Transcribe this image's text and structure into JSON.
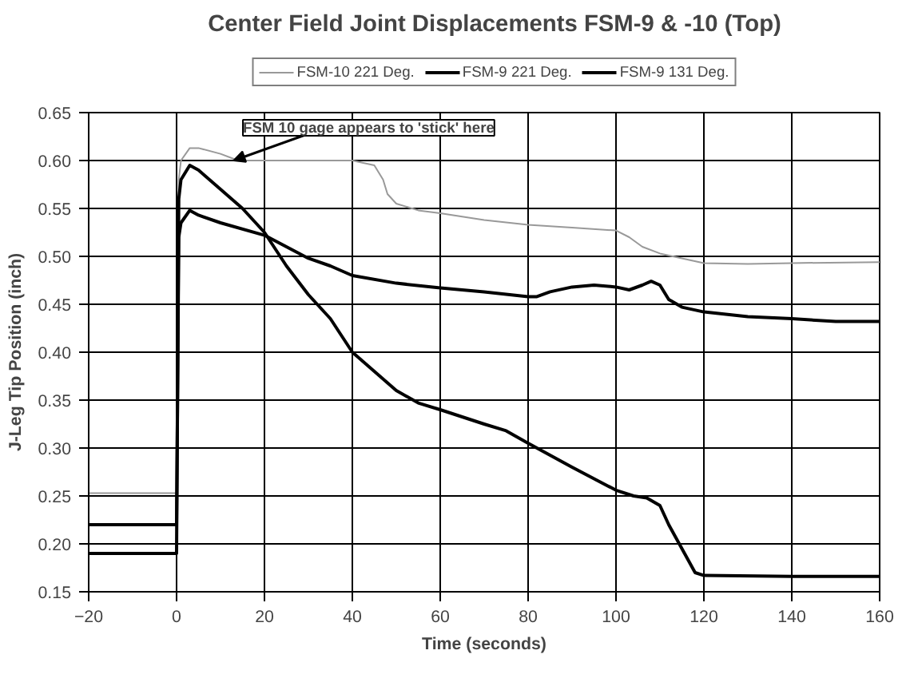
{
  "chart_data": {
    "type": "line",
    "title": "Center Field Joint Displacements FSM-9 & -10 (Top)",
    "xlabel": "Time (seconds)",
    "ylabel": "J-Leg Tip Position (inch)",
    "xlim": [
      -20,
      160
    ],
    "xticks": [
      -20,
      0,
      20,
      40,
      60,
      80,
      100,
      120,
      140,
      160
    ],
    "ylim": [
      0.15,
      0.65
    ],
    "yticks": [
      {
        "value": 0.15,
        "label": "0.15"
      },
      {
        "value": 0.2,
        "label": "0.20"
      },
      {
        "value": 0.25,
        "label": "0.25"
      },
      {
        "value": 0.3,
        "label": "0.30"
      },
      {
        "value": 0.35,
        "label": "0.35"
      },
      {
        "value": 0.4,
        "label": "0.40"
      },
      {
        "value": 0.45,
        "label": "0.45"
      },
      {
        "value": 0.5,
        "label": "0.50"
      },
      {
        "value": 0.55,
        "label": "0.55"
      },
      {
        "value": 0.6,
        "label": "0.60"
      },
      {
        "value": 0.65,
        "label": "0.65"
      }
    ],
    "grid": true,
    "legend": "top",
    "marker": "none",
    "line_style": "solid",
    "annotations": [
      {
        "text": "FSM 10 gage appears to 'stick' here",
        "x": 13,
        "y": 0.6
      }
    ],
    "series": [
      {
        "name": "FSM-10 221 Deg.",
        "color": "#999999",
        "x": [
          -20,
          0,
          0.5,
          1,
          3,
          5,
          10,
          14,
          20,
          30,
          40,
          45,
          47,
          48,
          50,
          55,
          60,
          70,
          80,
          90,
          100,
          103,
          106,
          110,
          115,
          120,
          130,
          140,
          160
        ],
        "values": [
          0.253,
          0.253,
          0.58,
          0.6,
          0.613,
          0.613,
          0.607,
          0.6,
          0.6,
          0.6,
          0.6,
          0.595,
          0.58,
          0.565,
          0.555,
          0.548,
          0.545,
          0.538,
          0.533,
          0.53,
          0.527,
          0.52,
          0.51,
          0.503,
          0.498,
          0.493,
          0.492,
          0.493,
          0.494
        ]
      },
      {
        "name": "FSM-9 221 Deg.",
        "color": "#000000",
        "x": [
          -20,
          0,
          0.5,
          1,
          3,
          5,
          10,
          20,
          25,
          30,
          35,
          40,
          50,
          60,
          70,
          80,
          82,
          85,
          90,
          95,
          100,
          103,
          106,
          108,
          110,
          112,
          115,
          120,
          130,
          140,
          150,
          160
        ],
        "values": [
          0.22,
          0.22,
          0.52,
          0.535,
          0.548,
          0.543,
          0.535,
          0.522,
          0.51,
          0.498,
          0.49,
          0.48,
          0.472,
          0.467,
          0.463,
          0.458,
          0.458,
          0.463,
          0.468,
          0.47,
          0.468,
          0.465,
          0.47,
          0.474,
          0.47,
          0.455,
          0.447,
          0.442,
          0.437,
          0.435,
          0.432,
          0.432
        ]
      },
      {
        "name": "FSM-9 131 Deg.",
        "color": "#000000",
        "x": [
          -20,
          0,
          0.5,
          1,
          3,
          5,
          10,
          15,
          20,
          25,
          30,
          35,
          40,
          45,
          50,
          55,
          60,
          70,
          75,
          80,
          90,
          100,
          104,
          107,
          110,
          112,
          115,
          118,
          120,
          140,
          160
        ],
        "values": [
          0.19,
          0.19,
          0.56,
          0.58,
          0.595,
          0.59,
          0.57,
          0.55,
          0.525,
          0.49,
          0.46,
          0.435,
          0.4,
          0.38,
          0.36,
          0.347,
          0.34,
          0.325,
          0.318,
          0.305,
          0.28,
          0.256,
          0.25,
          0.248,
          0.24,
          0.22,
          0.195,
          0.17,
          0.167,
          0.166,
          0.166
        ]
      }
    ]
  }
}
